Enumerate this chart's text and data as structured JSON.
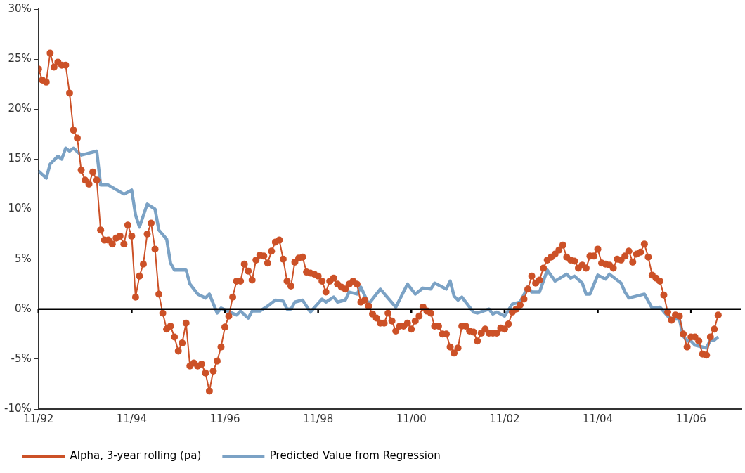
{
  "chart_data": {
    "type": "line",
    "x": [
      "1992-11",
      "1992-12",
      "1993-01",
      "1993-02",
      "1993-03",
      "1993-04",
      "1993-05",
      "1993-06",
      "1993-07",
      "1993-08",
      "1993-09",
      "1993-10",
      "1993-11",
      "1993-12",
      "1994-01",
      "1994-02",
      "1994-03",
      "1994-04",
      "1994-05",
      "1994-06",
      "1994-07",
      "1994-08",
      "1994-09",
      "1994-10",
      "1994-11",
      "1994-12",
      "1995-01",
      "1995-02",
      "1995-03",
      "1995-04",
      "1995-05",
      "1995-06",
      "1995-07",
      "1995-08",
      "1995-09",
      "1995-10",
      "1995-11",
      "1995-12",
      "1996-01",
      "1996-02",
      "1996-03",
      "1996-04",
      "1996-05",
      "1996-06",
      "1996-07",
      "1996-08",
      "1996-09",
      "1996-10",
      "1996-11",
      "1996-12",
      "1997-01",
      "1997-02",
      "1997-03",
      "1997-04",
      "1997-05",
      "1997-06",
      "1997-07",
      "1997-08",
      "1997-09",
      "1997-10",
      "1997-11",
      "1997-12",
      "1998-01",
      "1998-02",
      "1998-03",
      "1998-04",
      "1998-05",
      "1998-06",
      "1998-07",
      "1998-08",
      "1998-09",
      "1998-10",
      "1998-11",
      "1998-12",
      "1999-01",
      "1999-02",
      "1999-03",
      "1999-04",
      "1999-05",
      "1999-06",
      "1999-07",
      "1999-08",
      "1999-09",
      "1999-10",
      "1999-11",
      "1999-12",
      "2000-01",
      "2000-02",
      "2000-03",
      "2000-04",
      "2000-05",
      "2000-06",
      "2000-07",
      "2000-08",
      "2000-09",
      "2000-10",
      "2000-11",
      "2000-12",
      "2001-01",
      "2001-02",
      "2001-03",
      "2001-04",
      "2001-05",
      "2001-06",
      "2001-07",
      "2001-08",
      "2001-09",
      "2001-10",
      "2001-11",
      "2001-12",
      "2002-01",
      "2002-02",
      "2002-03",
      "2002-04",
      "2002-05",
      "2002-06",
      "2002-07",
      "2002-08",
      "2002-09",
      "2002-10",
      "2002-11",
      "2002-12",
      "2003-01",
      "2003-02",
      "2003-03",
      "2003-04",
      "2003-05",
      "2003-06",
      "2003-07",
      "2003-08",
      "2003-09",
      "2003-10",
      "2003-11",
      "2003-12",
      "2004-01",
      "2004-02",
      "2004-03",
      "2004-04",
      "2004-05",
      "2004-06",
      "2004-07",
      "2004-08",
      "2004-09",
      "2004-10",
      "2004-11",
      "2004-12",
      "2005-01",
      "2005-02",
      "2005-03",
      "2005-04",
      "2005-05",
      "2005-06",
      "2005-07",
      "2005-08",
      "2005-09",
      "2005-10",
      "2005-11",
      "2005-12",
      "2006-01",
      "2006-02",
      "2006-03",
      "2006-04",
      "2006-05",
      "2006-06",
      "2006-07",
      "2006-08",
      "2006-09",
      "2006-10",
      "2006-11",
      "2006-12",
      "2007-01",
      "2007-02",
      "2007-03",
      "2007-04",
      "2007-05",
      "2007-06"
    ],
    "series": [
      {
        "name": "Alpha, 3-year rolling (pa)",
        "color": "#cc5127",
        "marker": "circle",
        "values": [
          24.0,
          22.9,
          22.7,
          25.6,
          24.2,
          24.7,
          24.4,
          24.4,
          21.6,
          17.9,
          17.1,
          13.9,
          12.9,
          12.5,
          13.7,
          12.9,
          7.9,
          6.9,
          6.9,
          6.5,
          7.1,
          7.3,
          6.5,
          8.4,
          7.3,
          1.2,
          3.3,
          4.5,
          7.5,
          8.6,
          6.0,
          1.5,
          -0.4,
          -2.0,
          -1.7,
          -2.8,
          -4.2,
          -3.4,
          -1.4,
          -5.7,
          -5.4,
          -5.7,
          -5.5,
          -6.4,
          -8.2,
          -6.2,
          -5.2,
          -3.8,
          -1.8,
          -0.7,
          1.2,
          2.8,
          2.8,
          4.5,
          3.8,
          2.9,
          4.9,
          5.4,
          5.3,
          4.6,
          5.8,
          6.7,
          6.9,
          5.0,
          2.8,
          2.3,
          4.7,
          5.1,
          5.2,
          3.7,
          3.6,
          3.5,
          3.3,
          2.8,
          1.7,
          2.8,
          3.1,
          2.5,
          2.2,
          2.0,
          2.5,
          2.8,
          2.5,
          0.7,
          0.9,
          0.3,
          -0.5,
          -0.9,
          -1.4,
          -1.4,
          -0.4,
          -1.2,
          -2.2,
          -1.7,
          -1.7,
          -1.4,
          -2.0,
          -1.2,
          -0.7,
          0.2,
          -0.2,
          -0.4,
          -1.7,
          -1.7,
          -2.5,
          -2.5,
          -3.8,
          -4.4,
          -3.9,
          -1.7,
          -1.7,
          -2.2,
          -2.3,
          -3.2,
          -2.4,
          -2.0,
          -2.4,
          -2.4,
          -2.4,
          -1.9,
          -2.0,
          -1.5,
          -0.3,
          0.0,
          0.4,
          1.0,
          2.0,
          3.3,
          2.6,
          2.9,
          4.1,
          4.9,
          5.2,
          5.5,
          5.9,
          6.4,
          5.2,
          4.9,
          4.8,
          4.1,
          4.4,
          4.1,
          5.3,
          5.3,
          6.0,
          4.6,
          4.5,
          4.4,
          4.1,
          5.0,
          4.9,
          5.3,
          5.8,
          4.7,
          5.5,
          5.7,
          6.5,
          5.2,
          3.4,
          3.1,
          2.8,
          1.4,
          -0.3,
          -1.1,
          -0.6,
          -0.7,
          -2.5,
          -3.8,
          -2.8,
          -2.8,
          -3.2,
          -4.5,
          -4.6,
          -2.8,
          -2.0,
          -0.6
        ]
      },
      {
        "name": "Predicted Value from Regression",
        "color": "#7ba2c5",
        "marker": "none",
        "x": [
          "1992-11",
          "1993-01",
          "1993-02",
          "1993-04",
          "1993-05",
          "1993-06",
          "1993-07",
          "1993-08",
          "1993-10",
          "1994-02",
          "1994-03",
          "1994-05",
          "1994-09",
          "1994-11",
          "1994-12",
          "1995-01",
          "1995-03",
          "1995-05",
          "1995-06",
          "1995-08",
          "1995-09",
          "1995-10",
          "1996-01",
          "1996-02",
          "1996-04",
          "1996-06",
          "1996-07",
          "1996-09",
          "1996-10",
          "1997-02",
          "1997-03",
          "1997-05",
          "1997-06",
          "1997-08",
          "1997-10",
          "1997-12",
          "1998-02",
          "1998-03",
          "1998-04",
          "1998-05",
          "1998-07",
          "1998-09",
          "1998-12",
          "1999-01",
          "1999-03",
          "1999-04",
          "1999-06",
          "1999-07",
          "1999-09",
          "1999-10",
          "1999-12",
          "2000-03",
          "2000-07",
          "2000-10",
          "2000-12",
          "2001-02",
          "2001-04",
          "2001-05",
          "2001-08",
          "2001-09",
          "2001-10",
          "2001-11",
          "2001-12",
          "2002-03",
          "2002-04",
          "2002-07",
          "2002-08",
          "2002-09",
          "2002-11",
          "2003-01",
          "2003-03",
          "2003-05",
          "2003-06",
          "2003-08",
          "2003-10",
          "2003-12",
          "2004-03",
          "2004-04",
          "2004-05",
          "2004-07",
          "2004-08",
          "2004-09",
          "2004-11",
          "2005-01",
          "2005-02",
          "2005-05",
          "2005-06",
          "2005-07",
          "2005-11",
          "2006-01",
          "2006-03",
          "2006-05",
          "2006-06",
          "2006-08",
          "2006-09",
          "2006-10",
          "2006-11",
          "2006-12",
          "2007-03",
          "2007-04",
          "2007-05",
          "2007-06"
        ],
        "values": [
          13.8,
          13.1,
          14.5,
          15.3,
          15.0,
          16.1,
          15.8,
          16.1,
          15.4,
          15.8,
          12.4,
          12.4,
          11.5,
          11.9,
          9.4,
          8.2,
          10.5,
          10.0,
          7.9,
          7.0,
          4.6,
          3.9,
          3.9,
          2.5,
          1.5,
          1.1,
          1.5,
          -0.4,
          0.1,
          -0.6,
          -0.2,
          -0.9,
          -0.2,
          -0.2,
          0.3,
          0.9,
          0.8,
          0.0,
          0.0,
          0.7,
          0.9,
          -0.3,
          1.0,
          0.7,
          1.2,
          0.7,
          0.9,
          1.7,
          1.5,
          2.2,
          0.5,
          2.0,
          0.2,
          2.5,
          1.5,
          2.1,
          2.0,
          2.6,
          2.0,
          2.8,
          1.3,
          0.9,
          1.2,
          -0.3,
          -0.4,
          0.0,
          -0.5,
          -0.3,
          -0.7,
          0.5,
          0.7,
          2.2,
          1.7,
          1.7,
          3.9,
          2.8,
          3.5,
          3.1,
          3.3,
          2.6,
          1.5,
          1.5,
          3.4,
          3.0,
          3.5,
          2.6,
          1.7,
          1.1,
          1.5,
          0.1,
          0.2,
          -0.7,
          -1.0,
          -1.0,
          -2.7,
          -3.2,
          -3.2,
          -3.6,
          -3.9,
          -3.1,
          -3.1,
          -2.8
        ]
      }
    ],
    "xlim": [
      "1992-11",
      "2007-12"
    ],
    "xticks": [
      {
        "value": "1992-11",
        "label": "11/92"
      },
      {
        "value": "1994-11",
        "label": "11/94"
      },
      {
        "value": "1996-11",
        "label": "11/96"
      },
      {
        "value": "1998-11",
        "label": "11/98"
      },
      {
        "value": "2000-11",
        "label": "11/00"
      },
      {
        "value": "2002-11",
        "label": "11/02"
      },
      {
        "value": "2004-11",
        "label": "11/04"
      },
      {
        "value": "2006-11",
        "label": "11/06"
      }
    ],
    "ylim": [
      -10,
      30
    ],
    "yticks": [
      {
        "value": -10,
        "label": "-10%"
      },
      {
        "value": -5,
        "label": "-5%"
      },
      {
        "value": 0,
        "label": "0%"
      },
      {
        "value": 5,
        "label": "5%"
      },
      {
        "value": 10,
        "label": "10%"
      },
      {
        "value": 15,
        "label": "15%"
      },
      {
        "value": 20,
        "label": "20%"
      },
      {
        "value": 25,
        "label": "25%"
      },
      {
        "value": 30,
        "label": "30%"
      }
    ],
    "ref_lines": [
      {
        "axis": "y",
        "value": 0,
        "color": "#000000"
      }
    ],
    "grid": false,
    "legend": "bottom"
  }
}
